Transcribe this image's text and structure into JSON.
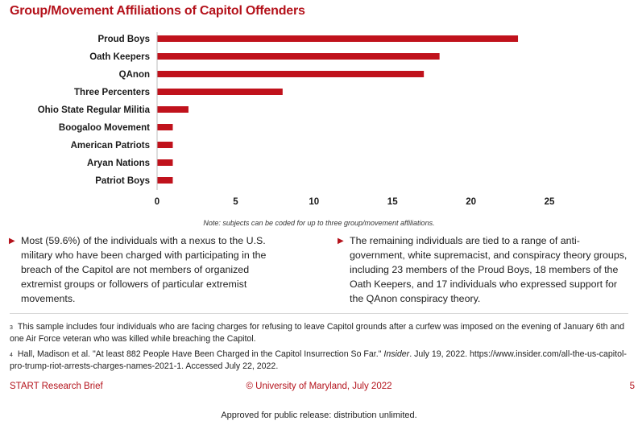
{
  "title": "Group/Movement Affiliations of Capitol Offenders",
  "chart_data": {
    "type": "bar",
    "orientation": "horizontal",
    "categories": [
      "Proud Boys",
      "Oath Keepers",
      "QAnon",
      "Three Percenters",
      "Ohio State Regular Militia",
      "Boogaloo Movement",
      "American Patriots",
      "Aryan Nations",
      "Patriot Boys"
    ],
    "values": [
      23,
      18,
      17,
      8,
      2,
      1,
      1,
      1,
      1
    ],
    "xlim": [
      0,
      25
    ],
    "xticks": [
      "0",
      "5",
      "10",
      "15",
      "20",
      "25"
    ],
    "bar_color": "#c0121c",
    "title": "",
    "xlabel": "",
    "ylabel": ""
  },
  "note": "Note: subjects can be coded for up to three group/movement affiliations.",
  "bullets": {
    "left": "Most (59.6%) of the individuals with a nexus to the U.S. military who have been charged with participating in the breach of the Capitol are not members of organized extremist groups or followers of particular extremist movements.",
    "right": "The remaining individuals are tied to a range of anti-government, white supremacist, and conspiracy theory groups, including 23 members of the Proud Boys, 18 members of the Oath Keepers, and 17 individuals who expressed support for the QAnon conspiracy theory."
  },
  "footnotes": {
    "fn3_num": "3",
    "fn3_text": "This sample includes four individuals who are facing charges for refusing to leave Capitol grounds after a curfew was imposed on the evening of January 6th and one Air Force veteran who was killed while breaching the Capitol.",
    "fn4_num": "4",
    "fn4_text_a": "Hall, Madison et al. \"At least 882 People Have Been Charged in the Capitol Insurrection So Far.\"",
    "fn4_source": "Insider",
    "fn4_text_b": ". July 19, 2022. https://www.insider.com/all-the-us-capitol-pro-trump-riot-arrests-charges-names-2021-1. Accessed July 22, 2022."
  },
  "footer": {
    "left": "START Research Brief",
    "center": "© University of Maryland, July 2022",
    "page": "5"
  },
  "release": "Approved for public release: distribution unlimited.",
  "colors": {
    "accent": "#b4121b",
    "bar": "#c0121c"
  }
}
